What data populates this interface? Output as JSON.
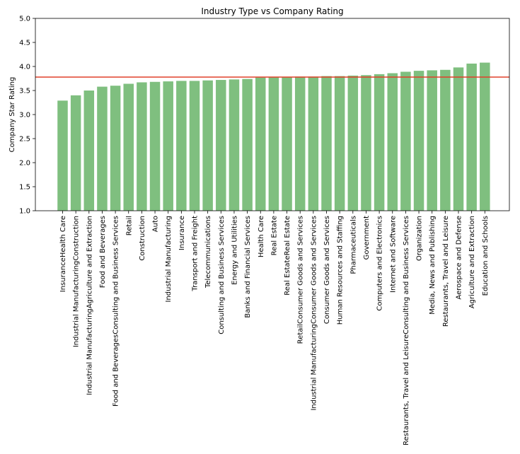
{
  "chart_data": {
    "type": "bar",
    "title": "Industry Type vs Company Rating",
    "xlabel": "",
    "ylabel": "Company Star Rating",
    "ylim": [
      1.0,
      5.0
    ],
    "yticks": [
      "1.0",
      "1.5",
      "2.0",
      "2.5",
      "3.0",
      "3.5",
      "4.0",
      "4.5",
      "5.0"
    ],
    "grid": false,
    "bar_color": "#7fbf7f",
    "reference_line": {
      "value": 3.78,
      "color": "#e0402a"
    },
    "categories": [
      "InsuranceHealth Care",
      "Industrial ManufacturingConstruction",
      "Industrial ManufacturingAgriculture and Extraction",
      "Food and Beverages",
      "Food and BeveragesConsulting and Business Services",
      "Retail",
      "Construction",
      "Auto",
      "Industrial Manufacturing",
      "Insurance",
      "Transport and Freight",
      "Telecommunications",
      "Consulting and Business Services",
      "Energy and Utilities",
      "Banks and Financial Services",
      "Health Care",
      "Real Estate",
      "Real EstateReal Estate",
      "RetailConsumer Goods and Services",
      "Industrial ManufacturingConsumer Goods and Services",
      "Consumer Goods and Services",
      "Human Resources and Staffing",
      "Pharmaceuticals",
      "Government",
      "Computers and Electronics",
      "Internet and Software",
      "Restaurants, Travel and LeisureConsulting and Business Services",
      "Organization",
      "Media, News and Publishing",
      "Restaurants, Travel and Leisure",
      "Aerospace and Defense",
      "Agriculture and Extraction",
      "Education and Schools"
    ],
    "values": [
      3.29,
      3.4,
      3.5,
      3.58,
      3.6,
      3.64,
      3.67,
      3.68,
      3.69,
      3.7,
      3.7,
      3.71,
      3.72,
      3.73,
      3.74,
      3.77,
      3.78,
      3.78,
      3.79,
      3.79,
      3.8,
      3.8,
      3.81,
      3.82,
      3.84,
      3.86,
      3.89,
      3.91,
      3.92,
      3.93,
      3.98,
      4.06,
      4.08
    ]
  }
}
